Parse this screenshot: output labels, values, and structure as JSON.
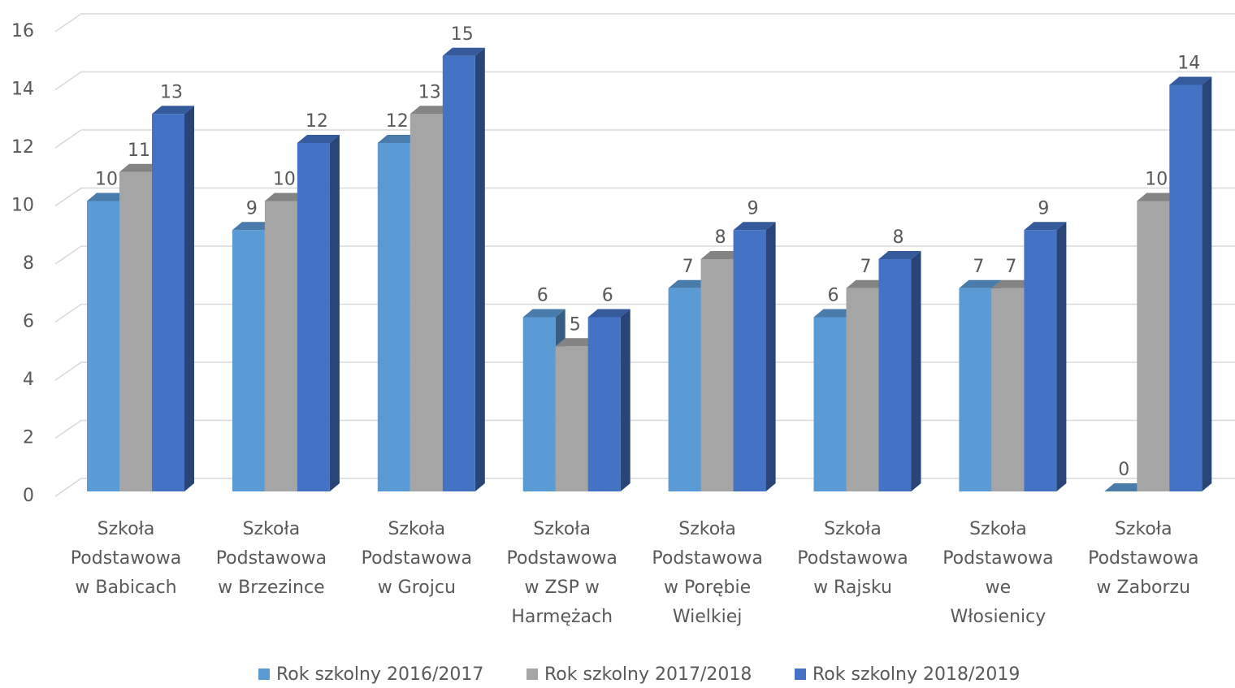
{
  "chart_data": {
    "type": "bar3d",
    "categories": [
      "Szkoła Podstawowa w Babicach",
      "Szkoła Podstawowa w Brzezince",
      "Szkoła Podstawowa w Grojcu",
      "Szkoła Podstawowa w ZSP w Harmężach",
      "Szkoła Podstawowa w Porębie Wielkiej",
      "Szkoła Podstawowa w Rajsku",
      "Szkoła Podstawowa we Włosienicy",
      "Szkoła Podstawowa w Zaborzu"
    ],
    "series": [
      {
        "name": "Rok szkolny 2016/2017",
        "color": "#5b9bd5",
        "values": [
          10,
          9,
          12,
          6,
          7,
          6,
          7,
          0
        ]
      },
      {
        "name": "Rok szkolny 2017/2018",
        "color": "#a5a5a5",
        "values": [
          11,
          10,
          13,
          5,
          8,
          7,
          7,
          10
        ]
      },
      {
        "name": "Rok szkolny 2018/2019",
        "color": "#4472c4",
        "values": [
          13,
          12,
          15,
          6,
          9,
          8,
          9,
          14
        ]
      }
    ],
    "ylim": [
      0,
      16
    ],
    "yticks": [
      0,
      2,
      4,
      6,
      8,
      10,
      12,
      14,
      16
    ],
    "grid": true,
    "legend": "bottom"
  }
}
